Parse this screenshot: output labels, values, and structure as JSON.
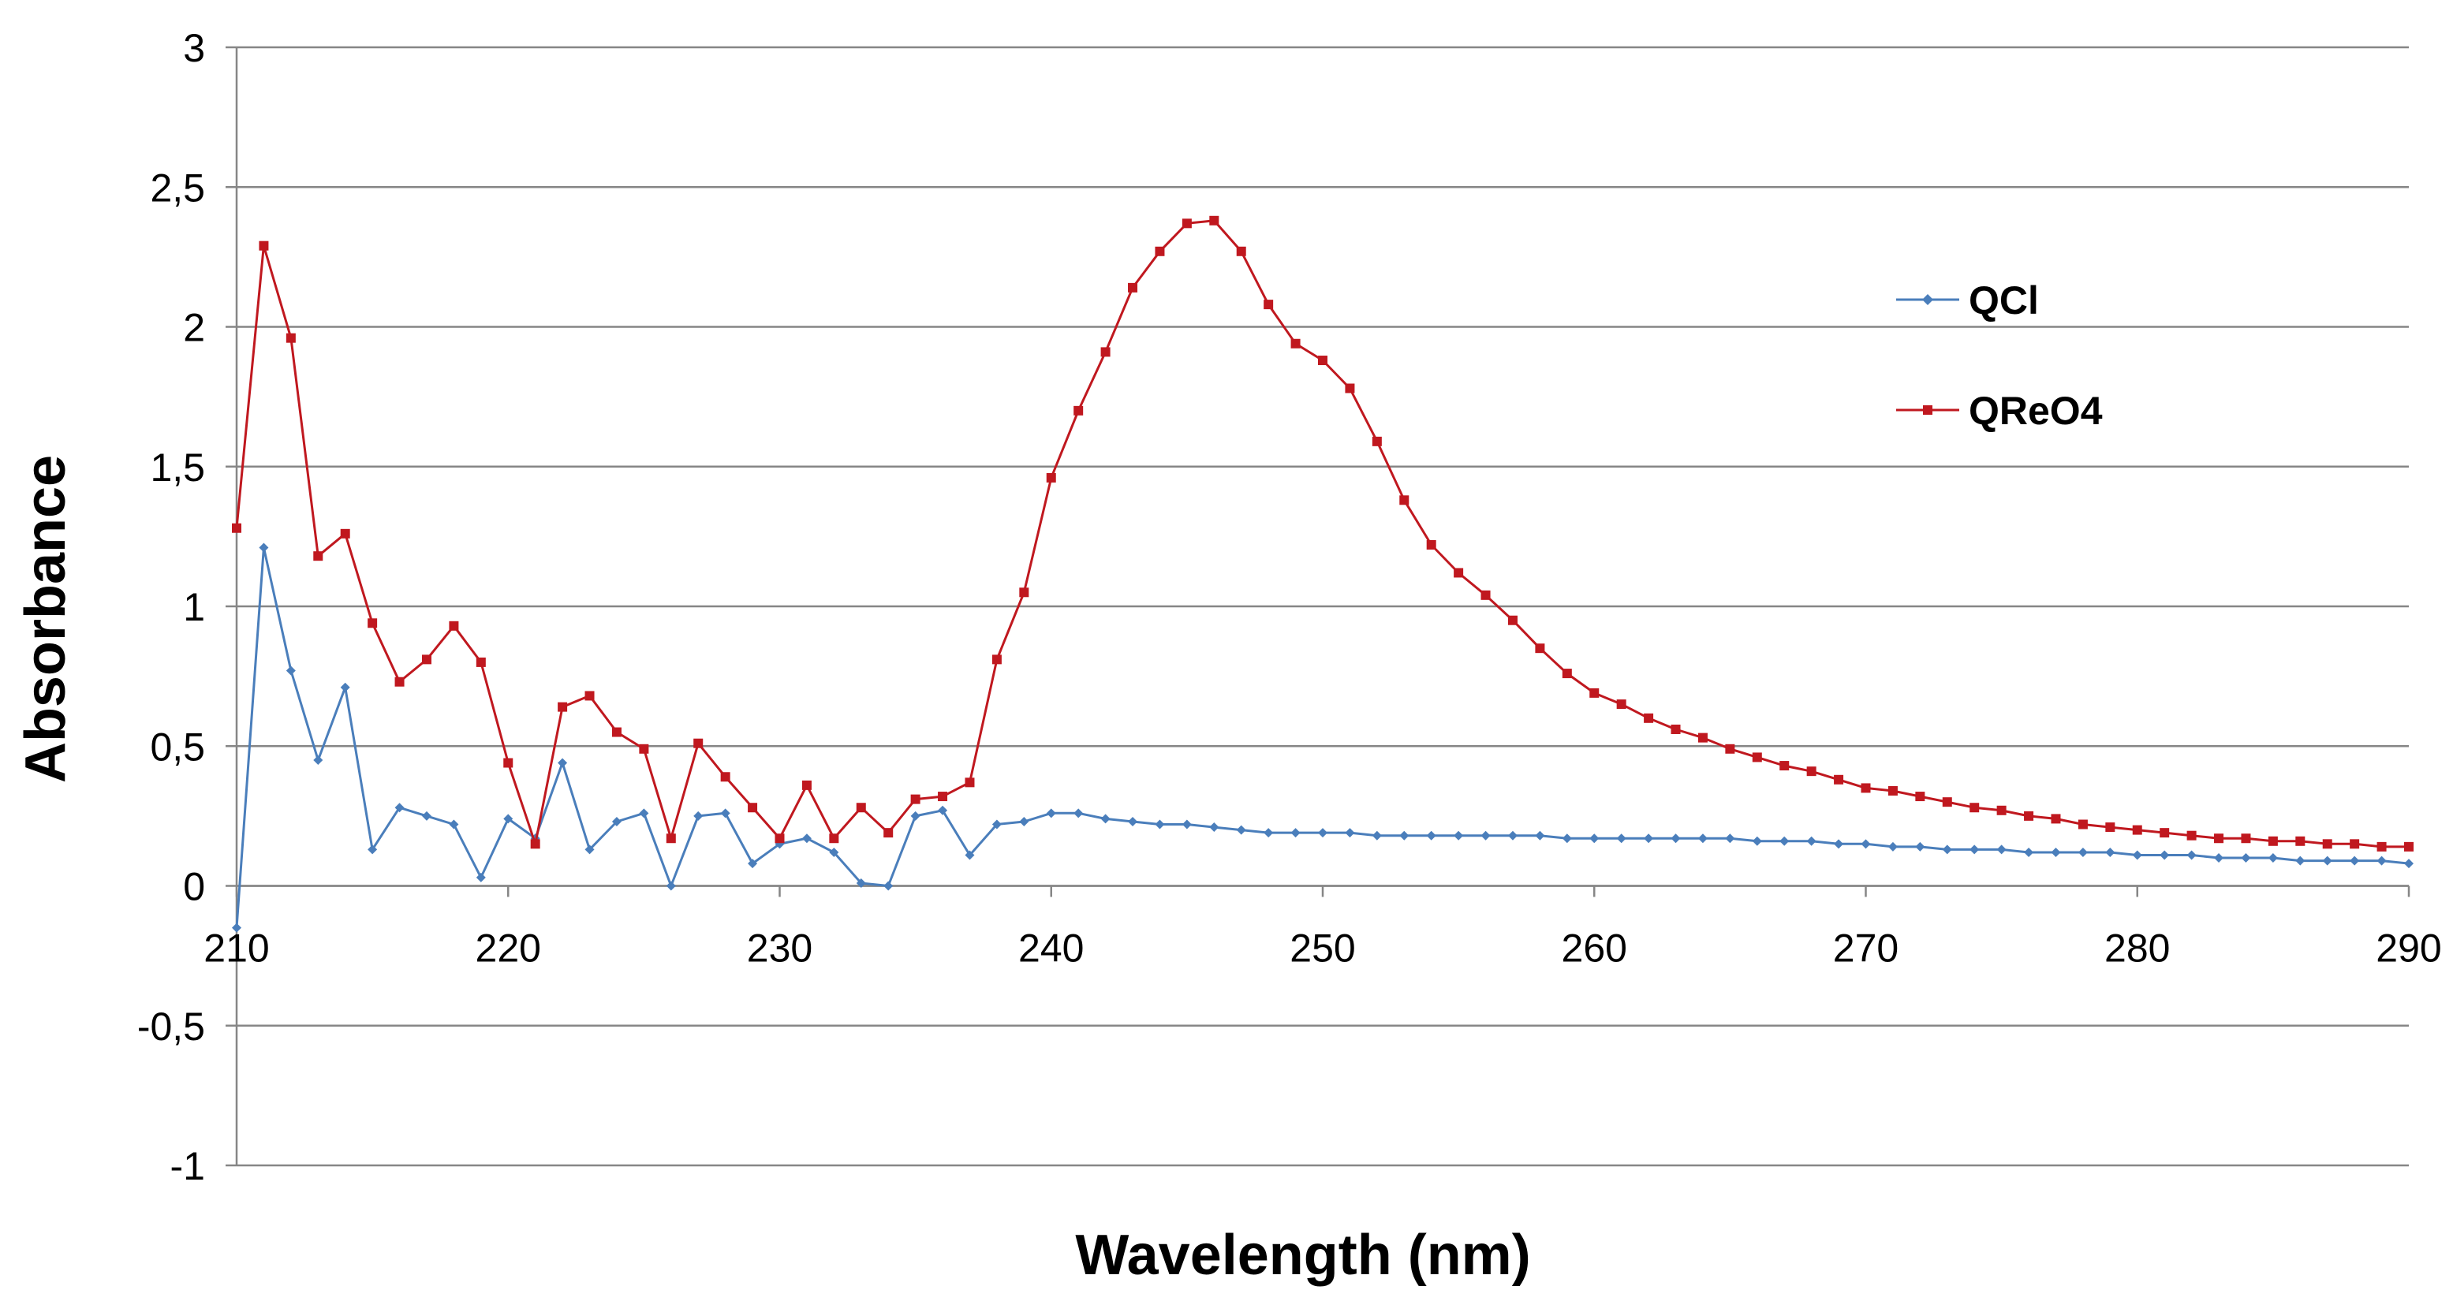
{
  "chart_data": {
    "type": "line",
    "title": "",
    "xlabel": "Wavelength (nm)",
    "ylabel": "Absorbance",
    "xlim": [
      210,
      290
    ],
    "ylim": [
      -1,
      3
    ],
    "x_ticks": [
      "210",
      "220",
      "230",
      "240",
      "250",
      "260",
      "270",
      "280",
      "290"
    ],
    "y_ticks": [
      "-1",
      "-0,5",
      "0",
      "0,5",
      "1",
      "1,5",
      "2",
      "2,5",
      "3"
    ],
    "grid": true,
    "legend_position": "right",
    "x": [
      210,
      211,
      212,
      213,
      214,
      215,
      216,
      217,
      218,
      219,
      220,
      221,
      222,
      223,
      224,
      225,
      226,
      227,
      228,
      229,
      230,
      231,
      232,
      233,
      234,
      235,
      236,
      237,
      238,
      239,
      240,
      241,
      242,
      243,
      244,
      245,
      246,
      247,
      248,
      249,
      250,
      251,
      252,
      253,
      254,
      255,
      256,
      257,
      258,
      259,
      260,
      261,
      262,
      263,
      264,
      265,
      266,
      267,
      268,
      269,
      270,
      271,
      272,
      273,
      274,
      275,
      276,
      277,
      278,
      279,
      280,
      281,
      282,
      283,
      284,
      285,
      286,
      287,
      288,
      289,
      290
    ],
    "series": [
      {
        "name": "QCl",
        "color": "#4A7EBB",
        "marker": "diamond",
        "values": [
          -0.15,
          1.21,
          0.77,
          0.45,
          0.71,
          0.13,
          0.28,
          0.25,
          0.22,
          0.03,
          0.24,
          0.17,
          0.44,
          0.13,
          0.23,
          0.26,
          0.0,
          0.25,
          0.26,
          0.08,
          0.15,
          0.17,
          0.12,
          0.01,
          0.0,
          0.25,
          0.27,
          0.11,
          0.22,
          0.23,
          0.26,
          0.26,
          0.24,
          0.23,
          0.22,
          0.22,
          0.21,
          0.2,
          0.19,
          0.19,
          0.19,
          0.19,
          0.18,
          0.18,
          0.18,
          0.18,
          0.18,
          0.18,
          0.18,
          0.17,
          0.17,
          0.17,
          0.17,
          0.17,
          0.17,
          0.17,
          0.16,
          0.16,
          0.16,
          0.15,
          0.15,
          0.14,
          0.14,
          0.13,
          0.13,
          0.13,
          0.12,
          0.12,
          0.12,
          0.12,
          0.11,
          0.11,
          0.11,
          0.1,
          0.1,
          0.1,
          0.09,
          0.09,
          0.09,
          0.09,
          0.08
        ]
      },
      {
        "name": "QReO4",
        "color": "#C0181F",
        "marker": "square",
        "values": [
          1.28,
          2.29,
          1.96,
          1.18,
          1.26,
          0.94,
          0.73,
          0.81,
          0.93,
          0.8,
          0.44,
          0.15,
          0.64,
          0.68,
          0.55,
          0.49,
          0.17,
          0.51,
          0.39,
          0.28,
          0.17,
          0.36,
          0.17,
          0.28,
          0.19,
          0.31,
          0.32,
          0.37,
          0.81,
          1.05,
          1.46,
          1.7,
          1.91,
          2.14,
          2.27,
          2.37,
          2.38,
          2.27,
          2.08,
          1.94,
          1.88,
          1.78,
          1.59,
          1.38,
          1.22,
          1.12,
          1.04,
          0.95,
          0.85,
          0.76,
          0.69,
          0.65,
          0.6,
          0.56,
          0.53,
          0.49,
          0.46,
          0.43,
          0.41,
          0.38,
          0.35,
          0.34,
          0.32,
          0.3,
          0.28,
          0.27,
          0.25,
          0.24,
          0.22,
          0.21,
          0.2,
          0.19,
          0.18,
          0.17,
          0.17,
          0.16,
          0.16,
          0.15,
          0.15,
          0.14,
          0.14
        ]
      }
    ]
  }
}
